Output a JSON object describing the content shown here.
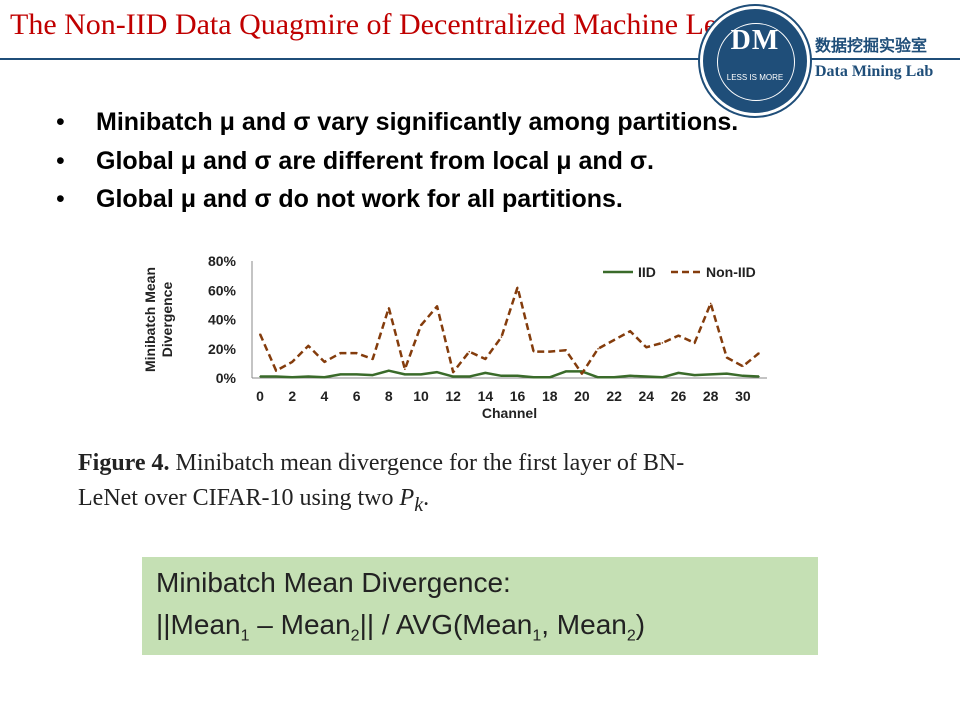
{
  "header": {
    "title": "The Non-IID Data Quagmire of Decentralized Machine Learning",
    "logo_text": "DM",
    "logo_motto": "LESS IS MORE",
    "lab_name_cn": "数据挖掘实验室",
    "lab_name_en": "Data Mining Lab"
  },
  "bullets": [
    "Minibatch μ and σ vary significantly among partitions.",
    "Global μ and σ are different from local μ and σ.",
    "Global μ and σ do not work for all partitions."
  ],
  "caption": {
    "label": "Figure 4.",
    "line1_rest": " Minibatch mean divergence for the first layer of BN-",
    "line2_text": "LeNet over CIFAR-10 using two ",
    "line2_math": "P",
    "line2_math_sub": "k",
    "line2_end": "."
  },
  "formula": {
    "line1": "Minibatch Mean Divergence:",
    "line2_a": "||Mean",
    "sub1": "1",
    "line2_b": " – Mean",
    "sub2": "2",
    "line2_c": "|| / AVG(Mean",
    "sub3": "1",
    "line2_d": ", Mean",
    "sub4": "2",
    "line2_e": ")"
  },
  "chart_data": {
    "type": "line",
    "title": "",
    "xlabel": "Channel",
    "ylabel": "Minibatch Mean Divergence",
    "x": [
      0,
      1,
      2,
      3,
      4,
      5,
      6,
      7,
      8,
      9,
      10,
      11,
      12,
      13,
      14,
      15,
      16,
      17,
      18,
      19,
      20,
      21,
      22,
      23,
      24,
      25,
      26,
      27,
      28,
      29,
      30,
      31
    ],
    "xticks": [
      0,
      2,
      4,
      6,
      8,
      10,
      12,
      14,
      16,
      18,
      20,
      22,
      24,
      26,
      28,
      30
    ],
    "yticks": [
      "0%",
      "20%",
      "40%",
      "60%",
      "80%"
    ],
    "ylim": [
      0,
      0.8
    ],
    "grid": false,
    "legend_position": "top-right",
    "series": [
      {
        "name": "IID",
        "color": "#3a6b2a",
        "dash": "solid",
        "values": [
          0.01,
          0.01,
          0.005,
          0.01,
          0.005,
          0.025,
          0.025,
          0.02,
          0.05,
          0.025,
          0.025,
          0.04,
          0.01,
          0.01,
          0.035,
          0.015,
          0.015,
          0.005,
          0.005,
          0.045,
          0.045,
          0.005,
          0.005,
          0.015,
          0.01,
          0.005,
          0.035,
          0.02,
          0.025,
          0.03,
          0.015,
          0.01
        ]
      },
      {
        "name": "Non-IID",
        "color": "#843c0c",
        "dash": "dashed",
        "values": [
          0.3,
          0.05,
          0.11,
          0.22,
          0.11,
          0.17,
          0.17,
          0.13,
          0.48,
          0.06,
          0.36,
          0.49,
          0.04,
          0.18,
          0.13,
          0.28,
          0.62,
          0.18,
          0.18,
          0.19,
          0.03,
          0.2,
          0.26,
          0.32,
          0.21,
          0.24,
          0.29,
          0.24,
          0.51,
          0.14,
          0.08,
          0.17
        ]
      }
    ]
  }
}
